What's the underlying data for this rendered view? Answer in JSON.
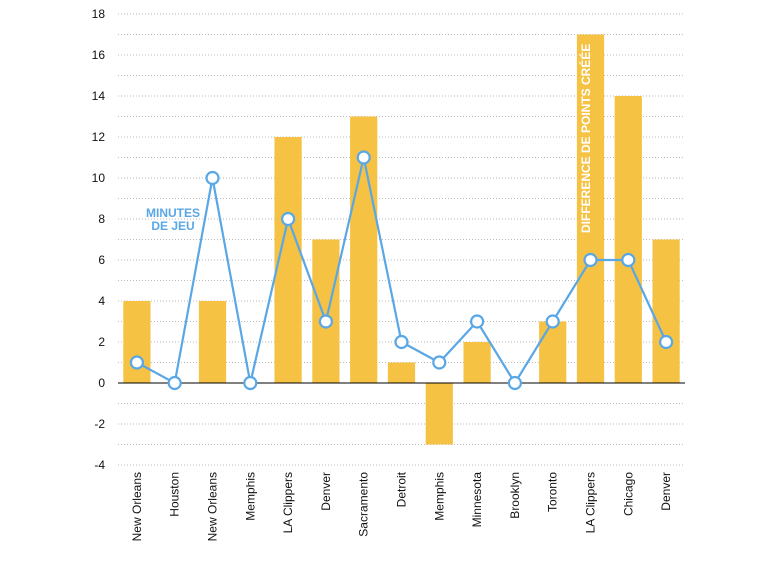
{
  "chart_data": {
    "type": "bar",
    "categories": [
      "New Orleans",
      "Houston",
      "New Orleans",
      "Memphis",
      "LA Clippers",
      "Denver",
      "Sacramento",
      "Detroit",
      "Memphis",
      "Minnesota",
      "Brooklyn",
      "Toronto",
      "LA Clippers",
      "Chicago",
      "Denver"
    ],
    "series": [
      {
        "name": "DIFFERENCE DE POINTS CRÉÉE",
        "kind": "bar",
        "values": [
          4,
          0,
          4,
          0,
          12,
          7,
          13,
          1,
          -3,
          2,
          0,
          3,
          17,
          14,
          7
        ]
      },
      {
        "name": "MINUTES DE JEU",
        "kind": "line",
        "values": [
          1,
          0,
          10,
          0,
          8,
          3,
          11,
          2,
          1,
          3,
          0,
          3,
          6,
          6,
          2
        ]
      }
    ],
    "ylim": [
      -4,
      18
    ],
    "yticks": [
      -4,
      -2,
      0,
      2,
      4,
      6,
      8,
      10,
      12,
      14,
      16,
      18
    ],
    "grid": true,
    "annotations": {
      "line_label_1": "MINUTES",
      "line_label_2": "DE JEU",
      "bar_label": "DIFFERENCE DE POINTS CRÉÉE"
    },
    "colors": {
      "bar": "#F5C244",
      "line": "#5AA7E6",
      "grid": "#BBBBBB",
      "axis": "#000000",
      "marker_fill": "#FFFFFF",
      "label_on_bar": "#FFFFFF"
    }
  }
}
